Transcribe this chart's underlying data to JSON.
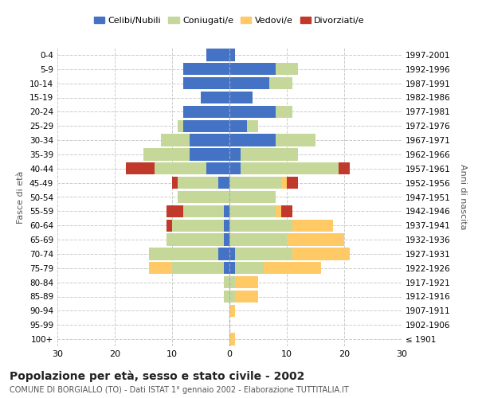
{
  "age_groups": [
    "100+",
    "95-99",
    "90-94",
    "85-89",
    "80-84",
    "75-79",
    "70-74",
    "65-69",
    "60-64",
    "55-59",
    "50-54",
    "45-49",
    "40-44",
    "35-39",
    "30-34",
    "25-29",
    "20-24",
    "15-19",
    "10-14",
    "5-9",
    "0-4"
  ],
  "birth_years": [
    "≤ 1901",
    "1902-1906",
    "1907-1911",
    "1912-1916",
    "1917-1921",
    "1922-1926",
    "1927-1931",
    "1932-1936",
    "1937-1941",
    "1942-1946",
    "1947-1951",
    "1952-1956",
    "1957-1961",
    "1962-1966",
    "1967-1971",
    "1972-1976",
    "1977-1981",
    "1982-1986",
    "1987-1991",
    "1992-1996",
    "1997-2001"
  ],
  "male": {
    "celibi": [
      0,
      0,
      0,
      0,
      0,
      1,
      2,
      1,
      1,
      1,
      0,
      2,
      4,
      7,
      7,
      8,
      8,
      5,
      8,
      8,
      4
    ],
    "coniugati": [
      0,
      0,
      0,
      1,
      1,
      9,
      12,
      10,
      9,
      7,
      9,
      7,
      9,
      8,
      5,
      1,
      0,
      0,
      0,
      0,
      0
    ],
    "vedovi": [
      0,
      0,
      0,
      0,
      0,
      4,
      0,
      0,
      0,
      0,
      0,
      0,
      0,
      0,
      0,
      0,
      0,
      0,
      0,
      0,
      0
    ],
    "divorziati": [
      0,
      0,
      0,
      0,
      0,
      0,
      0,
      0,
      1,
      3,
      0,
      1,
      5,
      0,
      0,
      0,
      0,
      0,
      0,
      0,
      0
    ]
  },
  "female": {
    "nubili": [
      0,
      0,
      0,
      0,
      0,
      1,
      1,
      0,
      0,
      0,
      0,
      0,
      2,
      2,
      8,
      3,
      8,
      4,
      7,
      8,
      1
    ],
    "coniugate": [
      0,
      0,
      0,
      1,
      1,
      5,
      10,
      10,
      11,
      8,
      8,
      9,
      17,
      10,
      7,
      2,
      3,
      0,
      4,
      4,
      0
    ],
    "vedove": [
      1,
      0,
      1,
      4,
      4,
      10,
      10,
      10,
      7,
      1,
      0,
      1,
      0,
      0,
      0,
      0,
      0,
      0,
      0,
      0,
      0
    ],
    "divorziate": [
      0,
      0,
      0,
      0,
      0,
      0,
      0,
      0,
      0,
      2,
      0,
      2,
      2,
      0,
      0,
      0,
      0,
      0,
      0,
      0,
      0
    ]
  },
  "colors": {
    "celibi_nubili": "#4472c4",
    "coniugati": "#c5d89a",
    "vedovi": "#ffc966",
    "divorziati": "#c0392b"
  },
  "title": "Popolazione per età, sesso e stato civile - 2002",
  "subtitle": "COMUNE DI BORGIALLO (TO) - Dati ISTAT 1° gennaio 2002 - Elaborazione TUTTITALIA.IT",
  "ylabel_left": "Fasce di età",
  "ylabel_right": "Anni di nascita",
  "xlim": 30,
  "background_color": "#ffffff",
  "grid_color": "#cccccc",
  "legend_labels": [
    "Celibi/Nubili",
    "Coniugati/e",
    "Vedovi/e",
    "Divorziati/e"
  ]
}
